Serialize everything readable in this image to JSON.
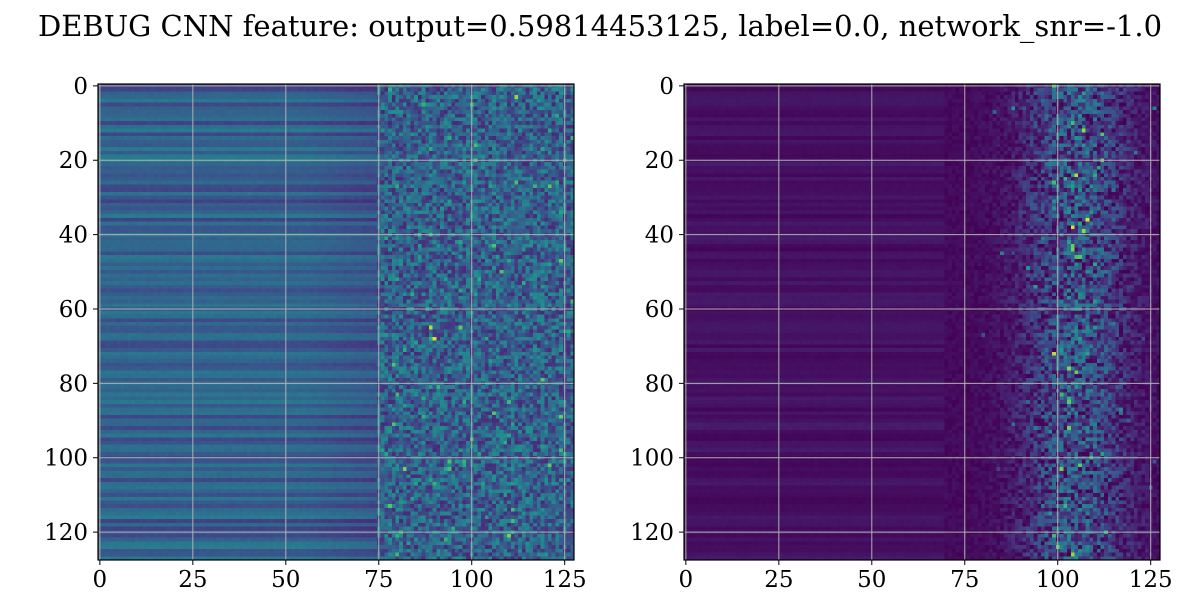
{
  "figure": {
    "suptitle": "DEBUG CNN feature: output=0.59814453125, label=0.0, network_snr=-1.0"
  },
  "chart_data": [
    {
      "type": "heatmap",
      "colormap": "viridis",
      "rows": 128,
      "cols": 128,
      "xlim": [
        -0.5,
        127.5
      ],
      "ylim": [
        127.5,
        -0.5
      ],
      "xticks": [
        0,
        25,
        50,
        75,
        100,
        125
      ],
      "yticks": [
        0,
        20,
        40,
        60,
        80,
        100,
        120
      ],
      "xtick_labels": [
        "0",
        "25",
        "50",
        "75",
        "100",
        "125"
      ],
      "ytick_labels": [
        "0",
        "20",
        "40",
        "60",
        "80",
        "100",
        "120"
      ],
      "grid": true,
      "description_of_values": "Columns 0-75 nearly constant along rows (horizontal stripes, mid-blue to teal); columns 75-127 noisy with scattered bright cells.",
      "value_range": [
        0,
        1
      ],
      "left_region_mean": 0.3,
      "right_region_mean": 0.33,
      "hotspots": [
        {
          "row": 68,
          "col": 90,
          "value": 0.95
        },
        {
          "row": 65,
          "col": 89,
          "value": 0.9
        },
        {
          "row": 3,
          "col": 112,
          "value": 0.85
        },
        {
          "row": 103,
          "col": 82,
          "value": 0.8
        },
        {
          "row": 121,
          "col": 110,
          "value": 0.8
        },
        {
          "row": 27,
          "col": 121,
          "value": 0.75
        },
        {
          "row": 65,
          "col": 97,
          "value": 0.75
        },
        {
          "row": 103,
          "col": 94,
          "value": 0.7
        },
        {
          "row": 16,
          "col": 101,
          "value": 0.7
        }
      ]
    },
    {
      "type": "heatmap",
      "colormap": "viridis",
      "rows": 128,
      "cols": 128,
      "xlim": [
        -0.5,
        127.5
      ],
      "ylim": [
        127.5,
        -0.5
      ],
      "xticks": [
        0,
        25,
        50,
        75,
        100,
        125
      ],
      "yticks": [
        0,
        20,
        40,
        60,
        80,
        100,
        120
      ],
      "xtick_labels": [
        "0",
        "25",
        "50",
        "75",
        "100",
        "125"
      ],
      "ytick_labels": [
        "0",
        "20",
        "40",
        "60",
        "80",
        "100",
        "120"
      ],
      "grid": true,
      "description_of_values": "Columns 0-70 near zero (dark purple with faint horizontal stripes); columns 70-127 sparse noise concentrated around columns 95-115 with bright cells.",
      "value_range": [
        0,
        1
      ],
      "left_region_mean": 0.03,
      "right_region_mean": 0.18,
      "hotspots": [
        {
          "row": 12,
          "col": 107,
          "value": 0.85
        },
        {
          "row": 24,
          "col": 105,
          "value": 0.9
        },
        {
          "row": 36,
          "col": 108,
          "value": 0.95
        },
        {
          "row": 38,
          "col": 104,
          "value": 0.95
        },
        {
          "row": 39,
          "col": 107,
          "value": 0.85
        },
        {
          "row": 44,
          "col": 104,
          "value": 0.8
        },
        {
          "row": 72,
          "col": 99,
          "value": 0.9
        },
        {
          "row": 85,
          "col": 103,
          "value": 0.75
        },
        {
          "row": 102,
          "col": 106,
          "value": 0.75
        },
        {
          "row": 126,
          "col": 104,
          "value": 0.85
        }
      ]
    }
  ]
}
